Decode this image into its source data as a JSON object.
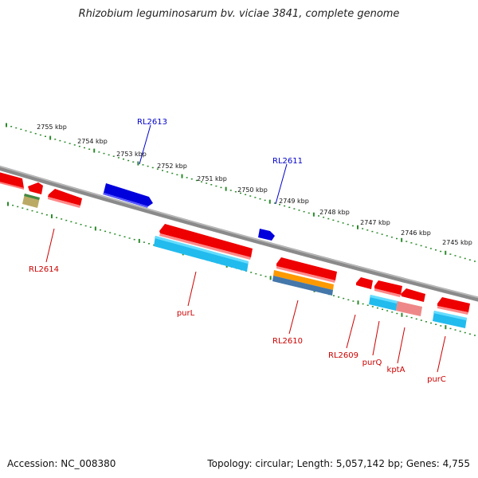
{
  "title": "Rhizobium leguminosarum bv. viciae 3841, complete genome",
  "footer": {
    "accession": "Accession: NC_008380",
    "summary": "Topology: circular; Length: 5,057,142 bp; Genes: 4,755"
  },
  "ticks": [
    "2755 kbp",
    "2754 kbp",
    "2753 kbp",
    "2752 kbp",
    "2751 kbp",
    "2750 kbp",
    "2749 kbp",
    "2748 kbp",
    "2747 kbp",
    "2746 kbp",
    "2745 kbp"
  ],
  "colors": {
    "backbone": "#888888",
    "tick": "#2a8a2a",
    "forward_gene": "#0000dd",
    "reverse_gene": "#ee0000",
    "cds_cyan": "#22bbee",
    "orange": "#ff9900",
    "steel": "#4477aa",
    "olive": "#bbaa66",
    "pink": "#ee8888",
    "label_red": "#cc0000",
    "label_blue": "#0000cc"
  },
  "labels": {
    "rl2613": "RL2613",
    "rl2611": "RL2611",
    "rl2614": "RL2614",
    "purL": "purL",
    "rl2610": "RL2610",
    "rl2609": "RL2609",
    "purQ": "purQ",
    "kptA": "kptA",
    "purC": "purC"
  }
}
